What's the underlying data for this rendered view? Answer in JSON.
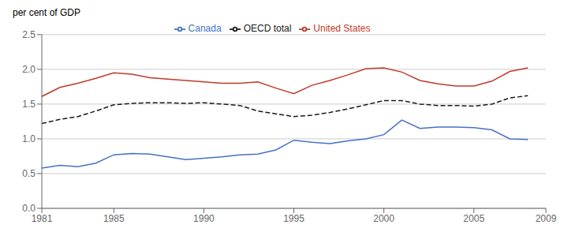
{
  "chart_data": {
    "type": "line",
    "ylabel": "per cent of GDP",
    "x": [
      1981,
      1982,
      1983,
      1984,
      1985,
      1986,
      1987,
      1988,
      1989,
      1990,
      1991,
      1992,
      1993,
      1994,
      1995,
      1996,
      1997,
      1998,
      1999,
      2000,
      2001,
      2002,
      2003,
      2004,
      2005,
      2006,
      2007,
      2008
    ],
    "series": [
      {
        "name": "Canada",
        "color": "#4472c4",
        "line_style": "solid",
        "values": [
          0.58,
          0.62,
          0.6,
          0.65,
          0.77,
          0.79,
          0.78,
          0.74,
          0.7,
          0.72,
          0.74,
          0.77,
          0.78,
          0.84,
          0.98,
          0.95,
          0.93,
          0.97,
          1.0,
          1.06,
          1.27,
          1.15,
          1.17,
          1.17,
          1.16,
          1.13,
          1.0,
          0.99
        ]
      },
      {
        "name": "United States",
        "color": "#c0392b",
        "line_style": "solid",
        "values": [
          1.61,
          1.74,
          1.8,
          1.87,
          1.95,
          1.93,
          1.88,
          1.86,
          1.84,
          1.82,
          1.8,
          1.8,
          1.82,
          1.73,
          1.65,
          1.77,
          1.84,
          1.92,
          2.01,
          2.02,
          1.96,
          1.84,
          1.79,
          1.76,
          1.76,
          1.83,
          1.97,
          2.02
        ]
      },
      {
        "name": "OECD total",
        "color": "#1a1a1a",
        "line_style": "dashed",
        "values": [
          1.22,
          1.28,
          1.32,
          1.4,
          1.49,
          1.51,
          1.52,
          1.52,
          1.51,
          1.52,
          1.5,
          1.48,
          1.4,
          1.36,
          1.32,
          1.34,
          1.38,
          1.43,
          1.49,
          1.55,
          1.55,
          1.5,
          1.48,
          1.48,
          1.47,
          1.5,
          1.59,
          1.62
        ]
      }
    ],
    "xlim": [
      1981,
      2009
    ],
    "xticks": [
      1981,
      1985,
      1990,
      1995,
      2000,
      2005,
      2009
    ],
    "ylim": [
      0.0,
      2.5
    ],
    "yticks": [
      {
        "value": 0,
        "label": "0.0"
      },
      0.5,
      {
        "value": 1,
        "label": "1.0"
      },
      1.5,
      {
        "value": 2,
        "label": "2.0"
      },
      2.5
    ],
    "grid": true,
    "legend": "top"
  }
}
